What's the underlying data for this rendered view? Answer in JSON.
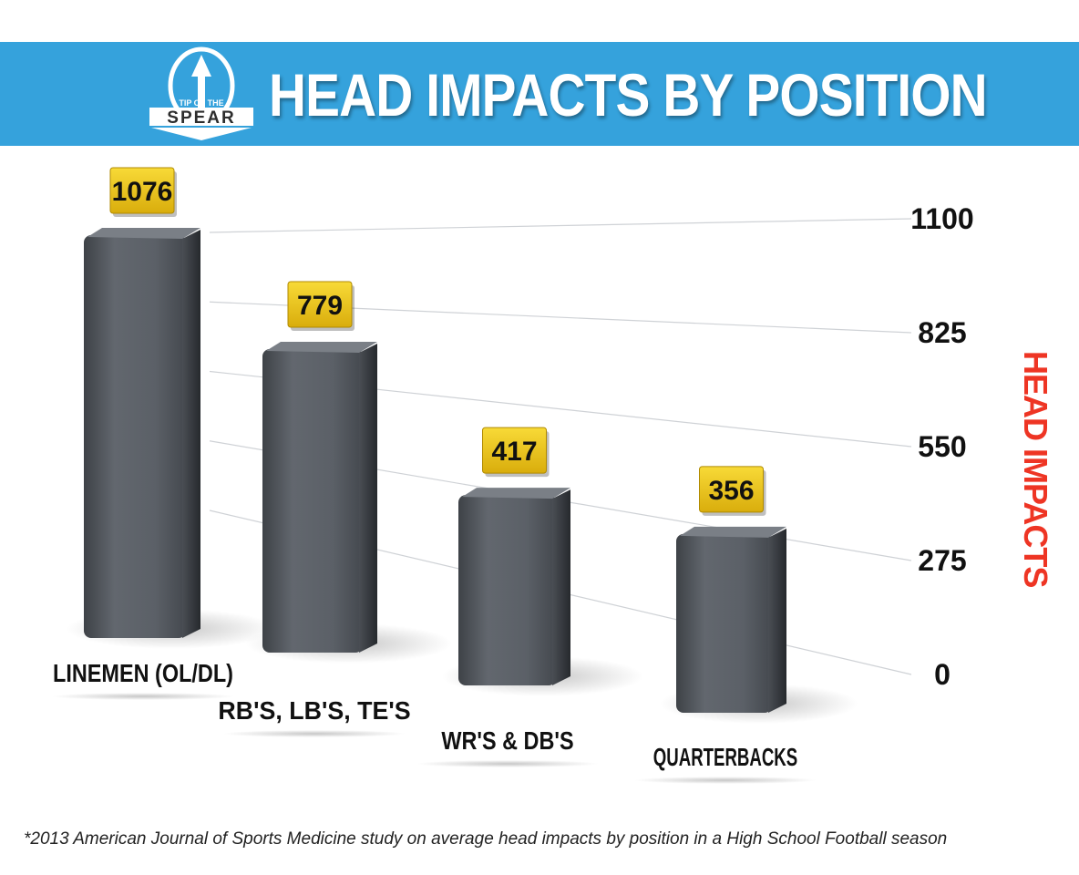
{
  "header": {
    "title": "HEAD IMPACTS BY POSITION",
    "logo_text_top": "TIP OF THE",
    "logo_text_bottom": "SPEAR"
  },
  "footnote": "*2013  American Journal of Sports Medicine study on average head impacts by position in a High School Football season",
  "colors": {
    "banner": "#35a2dc",
    "bar": "#5a5f66",
    "label_box": "#f2cc1d",
    "axis_title": "#ee3524"
  },
  "chart_data": {
    "type": "bar",
    "categories": [
      "LINEMEN (OL/DL)",
      "RB'S, LB'S, TE'S",
      "WR'S & DB'S",
      "QUARTERBACKS"
    ],
    "values": [
      1076,
      779,
      417,
      356
    ],
    "ylabel": "HEAD IMPACTS",
    "yticks": [
      1100,
      825,
      550,
      275,
      0
    ],
    "ylim": [
      0,
      1100
    ],
    "grid": true
  }
}
